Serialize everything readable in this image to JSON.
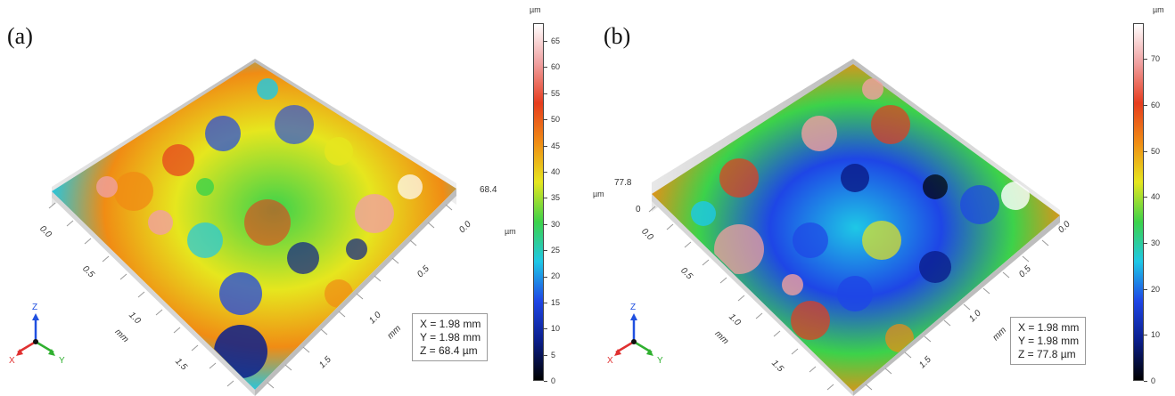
{
  "panels": [
    {
      "label": "(a)",
      "colorbar": {
        "unit": "µm",
        "ticks": [
          "65",
          "60",
          "55",
          "50",
          "45",
          "40",
          "35",
          "30",
          "25",
          "20",
          "15",
          "10",
          "5",
          "0"
        ],
        "max": 68.4
      },
      "z_axis": {
        "unit": "µm",
        "value": "68.4"
      },
      "left_axis": {
        "unit": "mm",
        "ticks": [
          "0.0",
          "0.5",
          "1.0",
          "1.5"
        ]
      },
      "right_axis": {
        "unit": "mm",
        "ticks": [
          "0.0",
          "0.5",
          "1.0",
          "1.5"
        ]
      },
      "info": {
        "x": "X = 1.98 mm",
        "y": "Y = 1.98 mm",
        "z": "Z = 68.4 µm"
      },
      "triad": {
        "x": "X",
        "y": "Y",
        "z": "Z"
      }
    },
    {
      "label": "(b)",
      "colorbar": {
        "unit": "µm",
        "ticks": [
          "70",
          "60",
          "50",
          "40",
          "30",
          "20",
          "10",
          "0"
        ],
        "max": 77.8
      },
      "z_axis": {
        "unit": "µm",
        "top": "77.8",
        "bottom": "0"
      },
      "left_axis": {
        "unit": "mm",
        "ticks": [
          "0.0",
          "0.5",
          "1.0",
          "1.5"
        ]
      },
      "right_axis": {
        "unit": "mm",
        "ticks": [
          "0.0",
          "0.5",
          "1.0",
          "1.5"
        ]
      },
      "info": {
        "x": "X = 1.98 mm",
        "y": "Y = 1.98 mm",
        "z": "Z = 77.8 µm"
      },
      "triad": {
        "x": "X",
        "y": "Y",
        "z": "Z"
      }
    }
  ],
  "colors": {
    "colormap": [
      "#000000",
      "#0a1e8c",
      "#1e46e6",
      "#1ec8e6",
      "#3cd24a",
      "#e6e61e",
      "#f08c14",
      "#e63c1e",
      "#f0a0a0",
      "#ffffff"
    ],
    "axis_x": "#e03030",
    "axis_y": "#30b030",
    "axis_z": "#2050e0"
  }
}
